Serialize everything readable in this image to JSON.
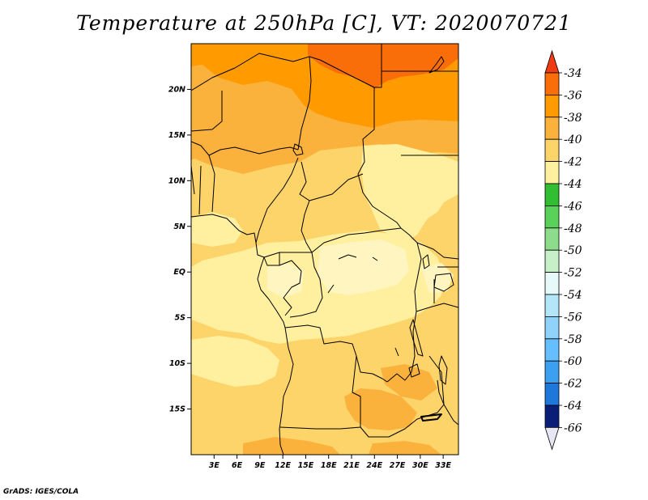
{
  "title": "Temperature at 250hPa [C], VT: 2020070721",
  "credit": "GrADS: IGES/COLA",
  "map": {
    "variable": "Temperature",
    "level": "250hPa",
    "units": "C",
    "lon_range": [
      0,
      35
    ],
    "lat_range": [
      -20,
      25
    ],
    "lat_ticks": [
      {
        "value": 20,
        "label": "20N"
      },
      {
        "value": 15,
        "label": "15N"
      },
      {
        "value": 10,
        "label": "10N"
      },
      {
        "value": 5,
        "label": "5N"
      },
      {
        "value": 0,
        "label": "EQ"
      },
      {
        "value": -5,
        "label": "5S"
      },
      {
        "value": -10,
        "label": "10S"
      },
      {
        "value": -15,
        "label": "15S"
      }
    ],
    "lon_ticks": [
      {
        "value": 3,
        "label": "3E"
      },
      {
        "value": 6,
        "label": "6E"
      },
      {
        "value": 9,
        "label": "9E"
      },
      {
        "value": 12,
        "label": "12E"
      },
      {
        "value": 15,
        "label": "15E"
      },
      {
        "value": 18,
        "label": "18E"
      },
      {
        "value": 21,
        "label": "21E"
      },
      {
        "value": 24,
        "label": "24E"
      },
      {
        "value": 27,
        "label": "27E"
      },
      {
        "value": 30,
        "label": "30E"
      },
      {
        "value": 33,
        "label": "33E"
      }
    ]
  },
  "colorbar": {
    "labels": [
      "-34",
      "-36",
      "-38",
      "-40",
      "-42",
      "-44",
      "-46",
      "-48",
      "-50",
      "-52",
      "-54",
      "-56",
      "-58",
      "-60",
      "-62",
      "-64",
      "-66"
    ],
    "top_arrow_color": "#f03c14",
    "bottom_arrow_color": "#e6e6f5",
    "colors": [
      "#fa6e0a",
      "#ff9b00",
      "#fbb23c",
      "#fdd46a",
      "#fff0a0",
      "#32be32",
      "#5ad25a",
      "#8cdc8c",
      "#c8f0c8",
      "#e6fafa",
      "#b4e6fa",
      "#91d2fa",
      "#64beff",
      "#3ca0f0",
      "#1e78dc",
      "#0a50b4",
      "#0a1e78"
    ]
  },
  "palette": {
    "t34": "#fa6e0a",
    "t36": "#ff9b00",
    "t38": "#fbb23c",
    "t40": "#fdd46a",
    "t42": "#fff0a0",
    "t43": "#fff5c0"
  }
}
